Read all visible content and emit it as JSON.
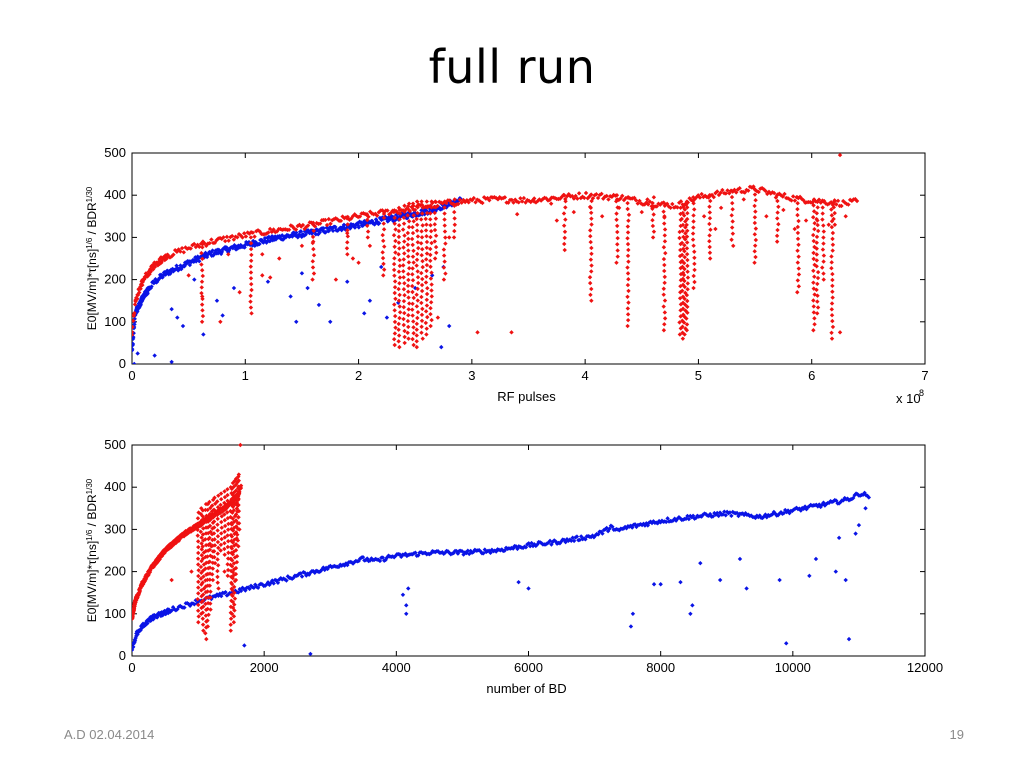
{
  "slide": {
    "title": "full  run",
    "footer_left": "A.D 02.04.2014",
    "page_number": "19"
  },
  "colors": {
    "blue": "#0a14e6",
    "red": "#ef1212"
  },
  "chart_data": [
    {
      "type": "scatter",
      "xlabel": "RF pulses",
      "ylabel": "E0[MV/m]*τ[ns]^1/6 / BDR^1/30",
      "x_multiplier_label": "x 10",
      "x_multiplier_exponent": "8",
      "xlim": [
        0,
        7
      ],
      "ylim": [
        0,
        500
      ],
      "xticks": [
        0,
        1,
        2,
        3,
        4,
        5,
        6,
        7
      ],
      "yticks": [
        0,
        100,
        200,
        300,
        400,
        500
      ],
      "series": [
        {
          "color": "blue",
          "trend": [
            [
              0.0,
              30
            ],
            [
              0.03,
              120
            ],
            [
              0.1,
              160
            ],
            [
              0.2,
              195
            ],
            [
              0.3,
              215
            ],
            [
              0.5,
              240
            ],
            [
              0.7,
              262
            ],
            [
              1.0,
              282
            ],
            [
              1.3,
              300
            ],
            [
              1.6,
              312
            ],
            [
              2.0,
              330
            ],
            [
              2.3,
              345
            ],
            [
              2.6,
              362
            ],
            [
              2.9,
              388
            ]
          ],
          "outliers": [
            [
              0.02,
              0
            ],
            [
              0.05,
              25
            ],
            [
              0.2,
              20
            ],
            [
              0.35,
              5
            ],
            [
              0.35,
              130
            ],
            [
              0.4,
              110
            ],
            [
              0.45,
              90
            ],
            [
              0.55,
              200
            ],
            [
              0.63,
              70
            ],
            [
              0.8,
              115
            ],
            [
              0.9,
              180
            ],
            [
              1.2,
              195
            ],
            [
              1.4,
              160
            ],
            [
              1.45,
              100
            ],
            [
              1.55,
              180
            ],
            [
              1.65,
              140
            ],
            [
              1.75,
              100
            ],
            [
              1.9,
              195
            ],
            [
              2.05,
              120
            ],
            [
              2.1,
              150
            ],
            [
              2.25,
              110
            ],
            [
              2.35,
              145
            ],
            [
              2.5,
              180
            ],
            [
              2.65,
              210
            ],
            [
              2.75,
              230
            ],
            [
              2.8,
              90
            ],
            [
              2.73,
              40
            ],
            [
              1.5,
              215
            ],
            [
              2.2,
              230
            ],
            [
              0.75,
              150
            ]
          ],
          "spikes": []
        },
        {
          "color": "red",
          "trend": [
            [
              0.0,
              70
            ],
            [
              0.03,
              150
            ],
            [
              0.1,
              200
            ],
            [
              0.2,
              235
            ],
            [
              0.3,
              255
            ],
            [
              0.5,
              275
            ],
            [
              0.7,
              290
            ],
            [
              1.0,
              305
            ],
            [
              1.3,
              318
            ],
            [
              1.6,
              330
            ],
            [
              2.0,
              350
            ],
            [
              2.3,
              362
            ],
            [
              2.6,
              375
            ],
            [
              2.9,
              385
            ],
            [
              3.2,
              390
            ],
            [
              3.5,
              388
            ],
            [
              3.8,
              395
            ],
            [
              4.0,
              400
            ],
            [
              4.3,
              395
            ],
            [
              4.6,
              380
            ],
            [
              4.8,
              375
            ],
            [
              5.0,
              395
            ],
            [
              5.3,
              410
            ],
            [
              5.5,
              415
            ],
            [
              5.7,
              400
            ],
            [
              5.9,
              390
            ],
            [
              6.1,
              385
            ],
            [
              6.3,
              380
            ],
            [
              6.4,
              385
            ]
          ],
          "outliers": [
            [
              0.5,
              210
            ],
            [
              0.62,
              160
            ],
            [
              0.78,
              100
            ],
            [
              0.95,
              170
            ],
            [
              1.15,
              260
            ],
            [
              1.22,
              205
            ],
            [
              1.3,
              250
            ],
            [
              1.5,
              280
            ],
            [
              1.6,
              290
            ],
            [
              1.8,
              200
            ],
            [
              1.9,
              310
            ],
            [
              2.0,
              240
            ],
            [
              2.1,
              280
            ],
            [
              2.7,
              110
            ],
            [
              2.8,
              300
            ],
            [
              3.05,
              75
            ],
            [
              3.35,
              75
            ],
            [
              3.4,
              355
            ],
            [
              3.75,
              340
            ],
            [
              3.9,
              360
            ],
            [
              4.05,
              370
            ],
            [
              4.15,
              350
            ],
            [
              4.3,
              370
            ],
            [
              4.5,
              360
            ],
            [
              4.55,
              390
            ],
            [
              4.7,
              350
            ],
            [
              5.05,
              350
            ],
            [
              5.15,
              320
            ],
            [
              5.2,
              370
            ],
            [
              5.4,
              390
            ],
            [
              5.6,
              350
            ],
            [
              5.75,
              365
            ],
            [
              5.85,
              320
            ],
            [
              5.95,
              340
            ],
            [
              6.05,
              340
            ],
            [
              6.15,
              330
            ],
            [
              6.25,
              75
            ],
            [
              6.25,
              495
            ],
            [
              6.3,
              350
            ],
            [
              1.15,
              210
            ],
            [
              1.95,
              250
            ],
            [
              0.85,
              260
            ],
            [
              3.55,
              385
            ],
            [
              3.7,
              380
            ]
          ],
          "spikes": [
            [
              0.62,
              100,
              290
            ],
            [
              1.05,
              120,
              300
            ],
            [
              1.6,
              200,
              330
            ],
            [
              1.9,
              260,
              345
            ],
            [
              2.08,
              300,
              355
            ],
            [
              2.22,
              210,
              360
            ],
            [
              2.32,
              45,
              360
            ],
            [
              2.36,
              40,
              370
            ],
            [
              2.4,
              50,
              375
            ],
            [
              2.44,
              60,
              380
            ],
            [
              2.48,
              45,
              380
            ],
            [
              2.52,
              40,
              385
            ],
            [
              2.56,
              60,
              385
            ],
            [
              2.6,
              70,
              385
            ],
            [
              2.64,
              90,
              385
            ],
            [
              2.68,
              250,
              385
            ],
            [
              2.76,
              200,
              385
            ],
            [
              2.85,
              300,
              390
            ],
            [
              3.82,
              270,
              400
            ],
            [
              4.05,
              150,
              400
            ],
            [
              4.28,
              240,
              400
            ],
            [
              4.38,
              90,
              395
            ],
            [
              4.6,
              300,
              395
            ],
            [
              4.7,
              80,
              375
            ],
            [
              4.84,
              70,
              370
            ],
            [
              4.86,
              60,
              372
            ],
            [
              4.88,
              70,
              380
            ],
            [
              4.9,
              80,
              385
            ],
            [
              4.96,
              180,
              395
            ],
            [
              5.1,
              250,
              400
            ],
            [
              5.3,
              280,
              410
            ],
            [
              5.5,
              240,
              415
            ],
            [
              5.7,
              290,
              400
            ],
            [
              5.88,
              170,
              395
            ],
            [
              6.02,
              80,
              390
            ],
            [
              6.05,
              120,
              385
            ],
            [
              6.1,
              200,
              385
            ],
            [
              6.18,
              60,
              380
            ],
            [
              6.2,
              330,
              385
            ]
          ]
        }
      ]
    },
    {
      "type": "scatter",
      "xlabel": "number of BD",
      "ylabel": "E0[MV/m]*τ[ns]^1/6 / BDR^1/30",
      "xlim": [
        0,
        12000
      ],
      "ylim": [
        0,
        500
      ],
      "xticks": [
        0,
        2000,
        4000,
        6000,
        8000,
        10000,
        12000
      ],
      "yticks": [
        0,
        100,
        200,
        300,
        400,
        500
      ],
      "series": [
        {
          "color": "blue",
          "trend": [
            [
              0,
              10
            ],
            [
              60,
              50
            ],
            [
              150,
              70
            ],
            [
              300,
              90
            ],
            [
              600,
              110
            ],
            [
              1000,
              130
            ],
            [
              1500,
              150
            ],
            [
              2000,
              170
            ],
            [
              2500,
              190
            ],
            [
              3000,
              210
            ],
            [
              3500,
              230
            ],
            [
              3700,
              225
            ],
            [
              3900,
              235
            ],
            [
              4500,
              245
            ],
            [
              5000,
              245
            ],
            [
              5500,
              250
            ],
            [
              6000,
              262
            ],
            [
              6500,
              272
            ],
            [
              7000,
              285
            ],
            [
              7200,
              300
            ],
            [
              7250,
              310
            ],
            [
              7300,
              295
            ],
            [
              7500,
              305
            ],
            [
              8000,
              320
            ],
            [
              8500,
              330
            ],
            [
              9000,
              338
            ],
            [
              9500,
              330
            ],
            [
              10000,
              345
            ],
            [
              10500,
              360
            ],
            [
              10800,
              370
            ],
            [
              10900,
              375
            ],
            [
              11000,
              385
            ],
            [
              11150,
              380
            ]
          ],
          "outliers": [
            [
              1700,
              25
            ],
            [
              2700,
              5
            ],
            [
              4100,
              145
            ],
            [
              4150,
              120
            ],
            [
              4150,
              100
            ],
            [
              4180,
              160
            ],
            [
              6000,
              160
            ],
            [
              5850,
              175
            ],
            [
              7550,
              70
            ],
            [
              7580,
              100
            ],
            [
              7900,
              170
            ],
            [
              8000,
              170
            ],
            [
              8450,
              100
            ],
            [
              8480,
              120
            ],
            [
              8300,
              175
            ],
            [
              8600,
              220
            ],
            [
              8900,
              180
            ],
            [
              9300,
              160
            ],
            [
              9200,
              230
            ],
            [
              9800,
              180
            ],
            [
              9900,
              30
            ],
            [
              10250,
              190
            ],
            [
              10350,
              230
            ],
            [
              10650,
              200
            ],
            [
              10700,
              280
            ],
            [
              10800,
              180
            ],
            [
              10850,
              40
            ],
            [
              10950,
              290
            ],
            [
              11000,
              310
            ],
            [
              11100,
              350
            ]
          ],
          "spikes": []
        },
        {
          "color": "red",
          "trend": [
            [
              0,
              90
            ],
            [
              50,
              130
            ],
            [
              150,
              170
            ],
            [
              300,
              210
            ],
            [
              500,
              250
            ],
            [
              800,
              290
            ],
            [
              1100,
              320
            ],
            [
              1400,
              350
            ],
            [
              1600,
              380
            ],
            [
              1650,
              400
            ]
          ],
          "outliers": [
            [
              1640,
              500
            ],
            [
              600,
              180
            ],
            [
              900,
              200
            ],
            [
              1200,
              260
            ],
            [
              1400,
              200
            ],
            [
              1500,
              230
            ]
          ],
          "spikes": [
            [
              1000,
              80,
              340
            ],
            [
              1050,
              100,
              350
            ],
            [
              1080,
              60,
              345
            ],
            [
              1120,
              40,
              360
            ],
            [
              1150,
              70,
              360
            ],
            [
              1180,
              110,
              365
            ],
            [
              1220,
              180,
              370
            ],
            [
              1250,
              220,
              375
            ],
            [
              1300,
              160,
              380
            ],
            [
              1350,
              250,
              385
            ],
            [
              1400,
              240,
              390
            ],
            [
              1450,
              190,
              395
            ],
            [
              1500,
              60,
              400
            ],
            [
              1520,
              100,
              410
            ],
            [
              1550,
              80,
              415
            ],
            [
              1580,
              180,
              420
            ],
            [
              1600,
              260,
              425
            ],
            [
              1620,
              300,
              430
            ]
          ]
        }
      ]
    }
  ]
}
